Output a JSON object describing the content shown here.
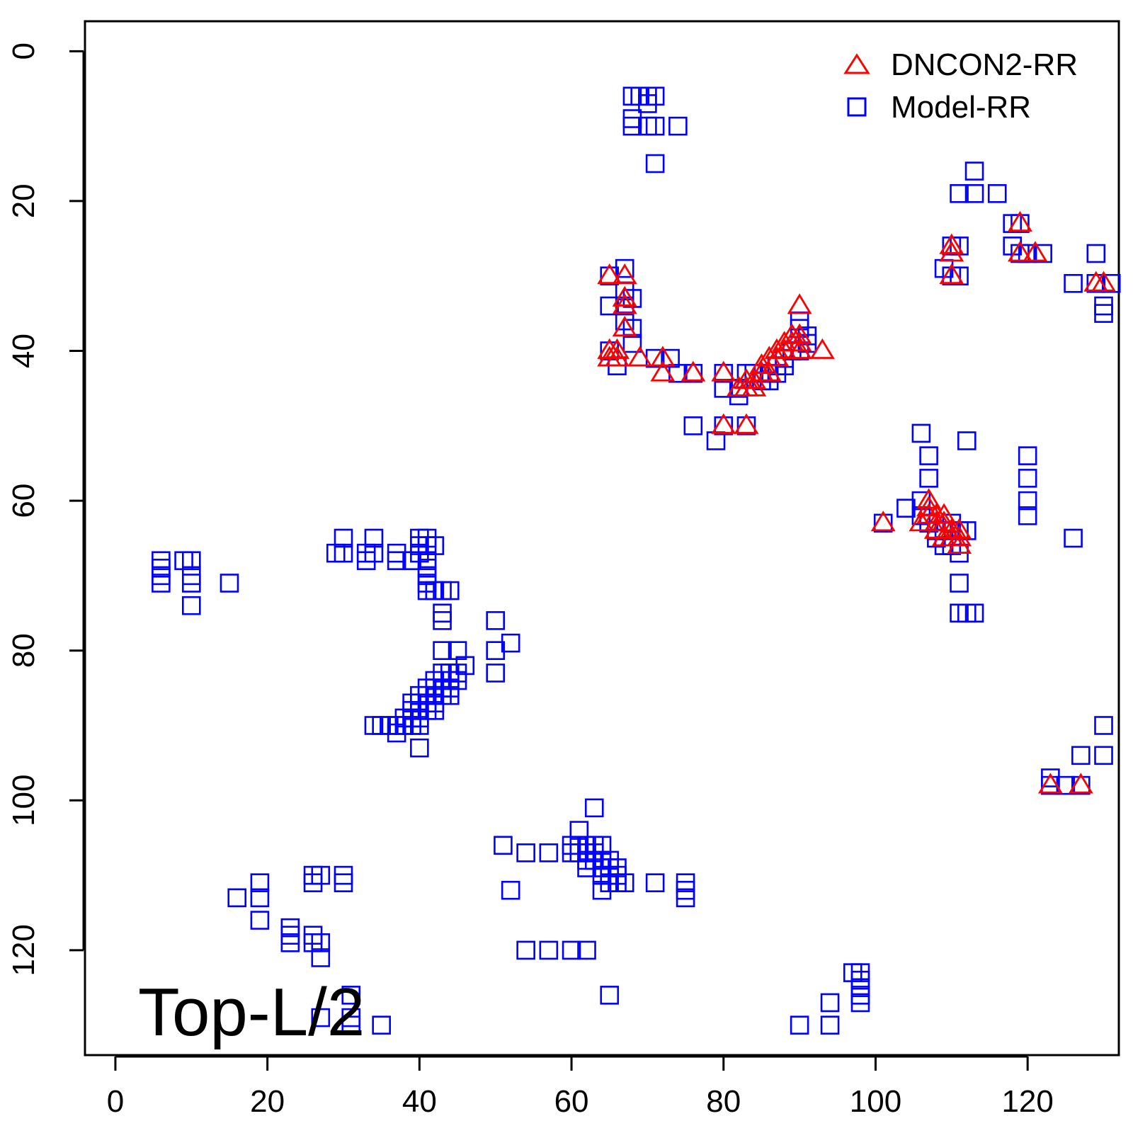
{
  "chart_data": {
    "type": "scatter",
    "panel_label": "Top-L/2",
    "xlabel": "",
    "ylabel": "",
    "xlim": [
      -4,
      132
    ],
    "ylim": [
      134,
      -4
    ],
    "y_reversed": true,
    "x_ticks": [
      0,
      20,
      40,
      60,
      80,
      100,
      120
    ],
    "y_ticks": [
      0,
      20,
      40,
      60,
      80,
      100,
      120
    ],
    "grid": false,
    "legend_position": "top-right",
    "series": [
      {
        "name": "DNCON2-RR",
        "marker": "triangle",
        "color": "#ff0000",
        "points": [
          [
            65,
            30
          ],
          [
            67,
            30
          ],
          [
            67,
            33
          ],
          [
            67,
            34
          ],
          [
            67,
            37
          ],
          [
            65,
            40
          ],
          [
            66,
            40
          ],
          [
            65,
            41
          ],
          [
            66,
            41
          ],
          [
            69,
            41
          ],
          [
            72,
            41
          ],
          [
            72,
            43
          ],
          [
            76,
            43
          ],
          [
            80,
            43
          ],
          [
            80,
            50
          ],
          [
            83,
            50
          ],
          [
            82,
            45
          ],
          [
            83,
            45
          ],
          [
            83,
            44
          ],
          [
            84,
            45
          ],
          [
            84,
            44
          ],
          [
            85,
            43
          ],
          [
            85,
            42
          ],
          [
            86,
            43
          ],
          [
            86,
            41
          ],
          [
            87,
            41
          ],
          [
            87,
            40
          ],
          [
            88,
            40
          ],
          [
            88,
            39
          ],
          [
            89,
            39
          ],
          [
            89,
            38
          ],
          [
            90,
            38
          ],
          [
            90,
            39
          ],
          [
            90,
            40
          ],
          [
            90,
            34
          ],
          [
            93,
            40
          ],
          [
            110,
            26
          ],
          [
            110,
            27
          ],
          [
            110,
            30
          ],
          [
            119,
            23
          ],
          [
            119,
            27
          ],
          [
            121,
            27
          ],
          [
            129,
            31
          ],
          [
            130,
            31
          ],
          [
            101,
            63
          ],
          [
            106,
            63
          ],
          [
            107,
            60
          ],
          [
            107,
            61
          ],
          [
            107,
            62
          ],
          [
            108,
            62
          ],
          [
            108,
            63
          ],
          [
            108,
            64
          ],
          [
            109,
            62
          ],
          [
            109,
            63
          ],
          [
            109,
            65
          ],
          [
            110,
            64
          ],
          [
            110,
            65
          ],
          [
            111,
            64
          ],
          [
            111,
            65
          ],
          [
            111,
            66
          ],
          [
            123,
            98
          ],
          [
            127,
            98
          ]
        ]
      },
      {
        "name": "Model-RR",
        "marker": "square",
        "color": "#0000ff",
        "points": [
          [
            68,
            6
          ],
          [
            69,
            6
          ],
          [
            70,
            6
          ],
          [
            71,
            6
          ],
          [
            70,
            7
          ],
          [
            68,
            9
          ],
          [
            68,
            10
          ],
          [
            70,
            10
          ],
          [
            71,
            10
          ],
          [
            74,
            10
          ],
          [
            71,
            15
          ],
          [
            67,
            29
          ],
          [
            65,
            30
          ],
          [
            67,
            32
          ],
          [
            68,
            33
          ],
          [
            65,
            34
          ],
          [
            67,
            34
          ],
          [
            67,
            36
          ],
          [
            68,
            37
          ],
          [
            68,
            39
          ],
          [
            65,
            40
          ],
          [
            66,
            42
          ],
          [
            71,
            41
          ],
          [
            73,
            41
          ],
          [
            76,
            43
          ],
          [
            74,
            43
          ],
          [
            80,
            43
          ],
          [
            80,
            45
          ],
          [
            82,
            45
          ],
          [
            82,
            46
          ],
          [
            79,
            52
          ],
          [
            76,
            50
          ],
          [
            80,
            50
          ],
          [
            83,
            50
          ],
          [
            83,
            43
          ],
          [
            84,
            43
          ],
          [
            85,
            44
          ],
          [
            86,
            43
          ],
          [
            86,
            44
          ],
          [
            87,
            43
          ],
          [
            87,
            42
          ],
          [
            88,
            42
          ],
          [
            88,
            41
          ],
          [
            89,
            40
          ],
          [
            90,
            40
          ],
          [
            90,
            37
          ],
          [
            90,
            36
          ],
          [
            91,
            38
          ],
          [
            91,
            39
          ],
          [
            110,
            26
          ],
          [
            111,
            26
          ],
          [
            110,
            30
          ],
          [
            111,
            30
          ],
          [
            109,
            29
          ],
          [
            113,
            16
          ],
          [
            111,
            19
          ],
          [
            113,
            19
          ],
          [
            116,
            19
          ],
          [
            118,
            23
          ],
          [
            119,
            23
          ],
          [
            118,
            26
          ],
          [
            119,
            27
          ],
          [
            120,
            27
          ],
          [
            122,
            27
          ],
          [
            129,
            27
          ],
          [
            126,
            31
          ],
          [
            129,
            31
          ],
          [
            131,
            31
          ],
          [
            130,
            34
          ],
          [
            130,
            35
          ],
          [
            106,
            51
          ],
          [
            107,
            54
          ],
          [
            107,
            57
          ],
          [
            112,
            52
          ],
          [
            104,
            61
          ],
          [
            106,
            60
          ],
          [
            106,
            62
          ],
          [
            107,
            63
          ],
          [
            108,
            64
          ],
          [
            108,
            65
          ],
          [
            109,
            64
          ],
          [
            109,
            66
          ],
          [
            110,
            63
          ],
          [
            110,
            66
          ],
          [
            111,
            67
          ],
          [
            111,
            64
          ],
          [
            112,
            64
          ],
          [
            111,
            71
          ],
          [
            111,
            75
          ],
          [
            112,
            75
          ],
          [
            113,
            75
          ],
          [
            120,
            54
          ],
          [
            120,
            57
          ],
          [
            120,
            60
          ],
          [
            120,
            62
          ],
          [
            126,
            65
          ],
          [
            101,
            63
          ],
          [
            130,
            90
          ],
          [
            127,
            94
          ],
          [
            130,
            94
          ],
          [
            123,
            97
          ],
          [
            123,
            98
          ],
          [
            125,
            98
          ],
          [
            127,
            98
          ],
          [
            6,
            68
          ],
          [
            6,
            69
          ],
          [
            6,
            70
          ],
          [
            6,
            71
          ],
          [
            9,
            68
          ],
          [
            10,
            68
          ],
          [
            10,
            70
          ],
          [
            10,
            71
          ],
          [
            10,
            74
          ],
          [
            15,
            71
          ],
          [
            29,
            67
          ],
          [
            30,
            65
          ],
          [
            30,
            67
          ],
          [
            33,
            67
          ],
          [
            33,
            68
          ],
          [
            34,
            65
          ],
          [
            34,
            67
          ],
          [
            37,
            67
          ],
          [
            37,
            68
          ],
          [
            39,
            68
          ],
          [
            40,
            65
          ],
          [
            40,
            66
          ],
          [
            40,
            67
          ],
          [
            41,
            65
          ],
          [
            41,
            66
          ],
          [
            41,
            68
          ],
          [
            41,
            69
          ],
          [
            41,
            70
          ],
          [
            41,
            71
          ],
          [
            41,
            72
          ],
          [
            42,
            66
          ],
          [
            42,
            72
          ],
          [
            43,
            72
          ],
          [
            43,
            75
          ],
          [
            43,
            76
          ],
          [
            44,
            72
          ],
          [
            50,
            76
          ],
          [
            50,
            80
          ],
          [
            50,
            83
          ],
          [
            52,
            79
          ],
          [
            43,
            80
          ],
          [
            45,
            80
          ],
          [
            46,
            82
          ],
          [
            43,
            83
          ],
          [
            44,
            83
          ],
          [
            45,
            83
          ],
          [
            45,
            84
          ],
          [
            44,
            84
          ],
          [
            42,
            84
          ],
          [
            43,
            85
          ],
          [
            44,
            85
          ],
          [
            44,
            86
          ],
          [
            42,
            85
          ],
          [
            41,
            85
          ],
          [
            41,
            86
          ],
          [
            42,
            86
          ],
          [
            43,
            86
          ],
          [
            40,
            86
          ],
          [
            40,
            87
          ],
          [
            41,
            87
          ],
          [
            42,
            87
          ],
          [
            39,
            87
          ],
          [
            39,
            88
          ],
          [
            40,
            88
          ],
          [
            41,
            88
          ],
          [
            42,
            88
          ],
          [
            38,
            89
          ],
          [
            39,
            89
          ],
          [
            40,
            89
          ],
          [
            38,
            90
          ],
          [
            39,
            90
          ],
          [
            40,
            90
          ],
          [
            37,
            90
          ],
          [
            37,
            91
          ],
          [
            34,
            90
          ],
          [
            35,
            90
          ],
          [
            36,
            90
          ],
          [
            40,
            93
          ],
          [
            16,
            113
          ],
          [
            19,
            111
          ],
          [
            19,
            113
          ],
          [
            19,
            116
          ],
          [
            23,
            117
          ],
          [
            23,
            118
          ],
          [
            23,
            119
          ],
          [
            26,
            110
          ],
          [
            26,
            111
          ],
          [
            27,
            110
          ],
          [
            26,
            118
          ],
          [
            26,
            119
          ],
          [
            27,
            119
          ],
          [
            27,
            121
          ],
          [
            30,
            110
          ],
          [
            30,
            111
          ],
          [
            27,
            129
          ],
          [
            31,
            126
          ],
          [
            31,
            129
          ],
          [
            31,
            130
          ],
          [
            35,
            130
          ],
          [
            51,
            106
          ],
          [
            52,
            112
          ],
          [
            54,
            107
          ],
          [
            57,
            107
          ],
          [
            54,
            120
          ],
          [
            57,
            120
          ],
          [
            60,
            120
          ],
          [
            62,
            120
          ],
          [
            65,
            126
          ],
          [
            60,
            106
          ],
          [
            60,
            107
          ],
          [
            61,
            104
          ],
          [
            61,
            106
          ],
          [
            61,
            107
          ],
          [
            62,
            106
          ],
          [
            62,
            107
          ],
          [
            62,
            108
          ],
          [
            63,
            101
          ],
          [
            63,
            106
          ],
          [
            63,
            107
          ],
          [
            63,
            108
          ],
          [
            64,
            106
          ],
          [
            64,
            108
          ],
          [
            64,
            109
          ],
          [
            65,
            108
          ],
          [
            65,
            109
          ],
          [
            65,
            110
          ],
          [
            66,
            109
          ],
          [
            66,
            110
          ],
          [
            66,
            111
          ],
          [
            67,
            111
          ],
          [
            62,
            109
          ],
          [
            64,
            110
          ],
          [
            64,
            112
          ],
          [
            65,
            111
          ],
          [
            71,
            111
          ],
          [
            75,
            111
          ],
          [
            75,
            112
          ],
          [
            75,
            113
          ],
          [
            90,
            130
          ],
          [
            94,
            127
          ],
          [
            94,
            130
          ],
          [
            97,
            123
          ],
          [
            98,
            123
          ],
          [
            98,
            124
          ],
          [
            98,
            125
          ],
          [
            98,
            126
          ],
          [
            98,
            127
          ]
        ]
      }
    ]
  }
}
